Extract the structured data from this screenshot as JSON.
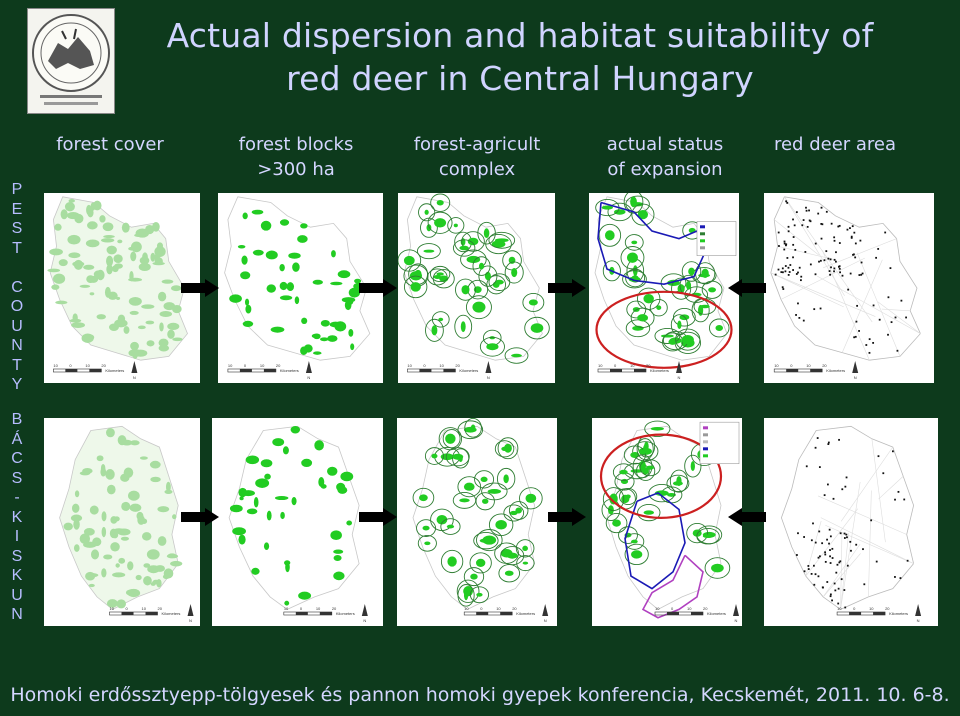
{
  "title": {
    "line1": "Actual dispersion and habitat suitability of",
    "line2": "red deer in Central Hungary"
  },
  "columns": [
    {
      "line1": "forest cover",
      "line2": ""
    },
    {
      "line1": "forest blocks",
      "line2": ">300 ha"
    },
    {
      "line1": "forest-agricult",
      "line2": "complex"
    },
    {
      "line1": "actual status",
      "line2": "of expansion"
    },
    {
      "line1": "red deer area",
      "line2": ""
    }
  ],
  "rows": {
    "pest": [
      "P",
      "E",
      "S",
      "T",
      "",
      "C",
      "O",
      "U",
      "N",
      "T",
      "Y"
    ],
    "bacs": [
      "B",
      "Á",
      "C",
      "S",
      "-",
      "K",
      "I",
      "S",
      "K",
      "U",
      "N"
    ]
  },
  "scalebar": {
    "ticks": [
      "10",
      "0",
      "10",
      "20"
    ],
    "unit": "Kilometers",
    "north": "N"
  },
  "legend_pest": [
    "Actual spread",
    "Habitat pattern",
    "Forest >300 ha",
    "Buffer"
  ],
  "legend_bacs": [
    "Pest M.",
    "Csongrád",
    "Tolna",
    "Actual spread",
    "Habitat"
  ],
  "footer": "Homoki erdőssztyepp-tölgyesek és pannon homoki gyepek konferencia, Kecskemét, 2011. 10. 6-8.",
  "colors": {
    "background": "#0d3a1c",
    "title_text": "#d0d4ff",
    "forest_light": "#a8dda0",
    "forest_green": "#22cc22",
    "buffer_line": "#2e7d32",
    "expansion_blue": "#1a1ab5",
    "expansion_purple": "#b040c0",
    "highlight_red": "#cc2020",
    "deer_black": "#111111"
  },
  "logo_icon": "institution-seal-icon"
}
